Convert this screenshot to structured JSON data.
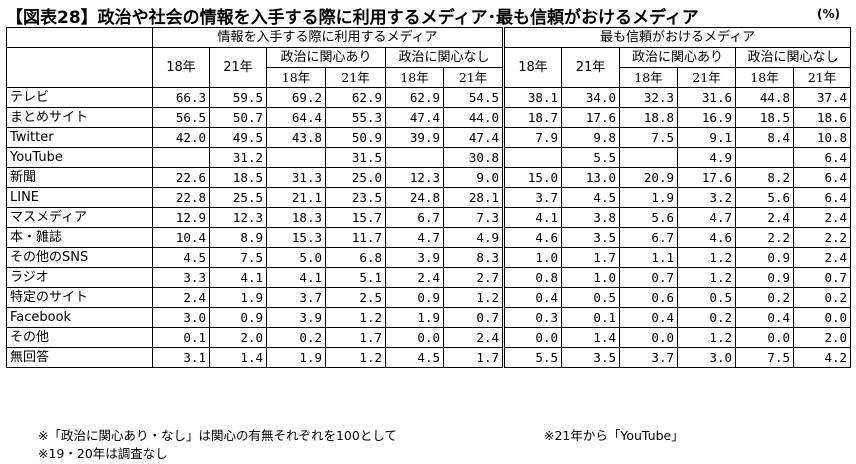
{
  "title": "【図表28】政治や社会の情報を入手する際に利用するメディア･最も信頼がおけるメディア",
  "unit": "(%)",
  "chart_data": {
    "type": "table",
    "groups": [
      {
        "label": "情報を入手する際に利用するメディア"
      },
      {
        "label": "最も信頼がおけるメディア"
      }
    ],
    "columns": {
      "y18": "18年",
      "y21": "21年",
      "interested": "政治に関心あり",
      "not_interested": "政治に関心なし",
      "sub18": "18年",
      "sub21": "21年"
    },
    "rows": [
      {
        "label": "テレビ",
        "use": [
          "66.3",
          "59.5",
          "69.2",
          "62.9",
          "62.9",
          "54.5"
        ],
        "trust": [
          "38.1",
          "34.0",
          "32.3",
          "31.6",
          "44.8",
          "37.4"
        ]
      },
      {
        "label": "まとめサイト",
        "use": [
          "56.5",
          "50.7",
          "64.4",
          "55.3",
          "47.4",
          "44.0"
        ],
        "trust": [
          "18.7",
          "17.6",
          "18.8",
          "16.9",
          "18.5",
          "18.6"
        ]
      },
      {
        "label": "Twitter",
        "use": [
          "42.0",
          "49.5",
          "43.8",
          "50.9",
          "39.9",
          "47.4"
        ],
        "trust": [
          "7.9",
          "9.8",
          "7.5",
          "9.1",
          "8.4",
          "10.8"
        ]
      },
      {
        "label": "YouTube",
        "use": [
          "",
          "31.2",
          "",
          "31.5",
          "",
          "30.8"
        ],
        "trust": [
          "",
          "5.5",
          "",
          "4.9",
          "",
          "6.4"
        ]
      },
      {
        "label": "新聞",
        "use": [
          "22.6",
          "18.5",
          "31.3",
          "25.0",
          "12.3",
          "9.0"
        ],
        "trust": [
          "15.0",
          "13.0",
          "20.9",
          "17.6",
          "8.2",
          "6.4"
        ]
      },
      {
        "label": "LINE",
        "use": [
          "22.8",
          "25.5",
          "21.1",
          "23.5",
          "24.8",
          "28.1"
        ],
        "trust": [
          "3.7",
          "4.5",
          "1.9",
          "3.2",
          "5.6",
          "6.4"
        ]
      },
      {
        "label": "マスメディア",
        "use": [
          "12.9",
          "12.3",
          "18.3",
          "15.7",
          "6.7",
          "7.3"
        ],
        "trust": [
          "4.1",
          "3.8",
          "5.6",
          "4.7",
          "2.4",
          "2.4"
        ]
      },
      {
        "label": "本・雑誌",
        "use": [
          "10.4",
          "8.9",
          "15.3",
          "11.7",
          "4.7",
          "4.9"
        ],
        "trust": [
          "4.6",
          "3.5",
          "6.7",
          "4.6",
          "2.2",
          "2.2"
        ]
      },
      {
        "label": "その他のSNS",
        "use": [
          "4.5",
          "7.5",
          "5.0",
          "6.8",
          "3.9",
          "8.3"
        ],
        "trust": [
          "1.0",
          "1.7",
          "1.1",
          "1.2",
          "0.9",
          "2.4"
        ]
      },
      {
        "label": "ラジオ",
        "use": [
          "3.3",
          "4.1",
          "4.1",
          "5.1",
          "2.4",
          "2.7"
        ],
        "trust": [
          "0.8",
          "1.0",
          "0.7",
          "1.2",
          "0.9",
          "0.7"
        ]
      },
      {
        "label": "特定のサイト",
        "use": [
          "2.4",
          "1.9",
          "3.7",
          "2.5",
          "0.9",
          "1.2"
        ],
        "trust": [
          "0.4",
          "0.5",
          "0.6",
          "0.5",
          "0.2",
          "0.2"
        ]
      },
      {
        "label": "Facebook",
        "use": [
          "3.0",
          "0.9",
          "3.9",
          "1.2",
          "1.9",
          "0.7"
        ],
        "trust": [
          "0.3",
          "0.1",
          "0.4",
          "0.2",
          "0.4",
          "0.0"
        ]
      },
      {
        "label": "その他",
        "use": [
          "0.1",
          "2.0",
          "0.2",
          "1.7",
          "0.0",
          "2.4"
        ],
        "trust": [
          "0.0",
          "1.4",
          "0.0",
          "1.2",
          "0.0",
          "2.0"
        ]
      },
      {
        "label": "無回答",
        "use": [
          "3.1",
          "1.4",
          "1.9",
          "1.2",
          "4.5",
          "1.7"
        ],
        "trust": [
          "5.5",
          "3.5",
          "3.7",
          "3.0",
          "7.5",
          "4.2"
        ]
      }
    ],
    "notes": [
      "※「政治に関心あり・なし」は関心の有無それぞれを100として",
      "※21年から「YouTube」",
      "※19・20年は調査なし"
    ]
  }
}
